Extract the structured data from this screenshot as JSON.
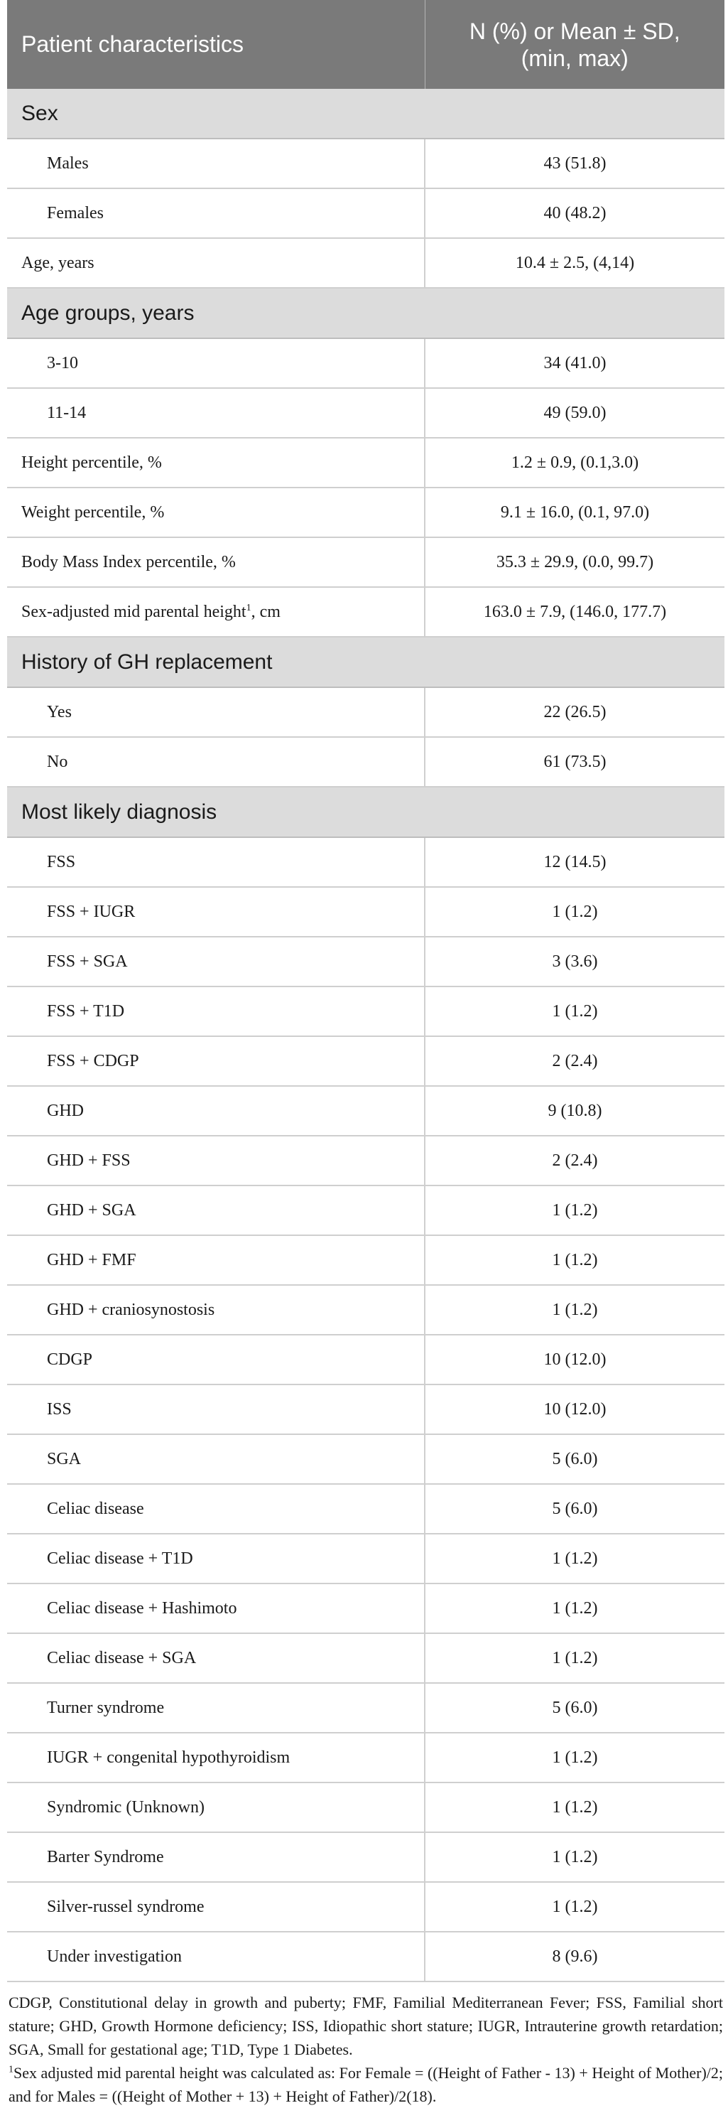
{
  "header": {
    "col1": "Patient characteristics",
    "col2_line1": "N (%) or Mean ± SD,",
    "col2_line2": "(min, max)"
  },
  "sections": {
    "sex": "Sex",
    "age_groups": "Age groups, years",
    "gh_history": "History of GH replacement",
    "diagnosis": "Most likely diagnosis"
  },
  "rows": {
    "males": [
      "Males",
      "43 (51.8)"
    ],
    "females": [
      "Females",
      "40 (48.2)"
    ],
    "age": [
      "Age, years",
      "10.4 ± 2.5, (4,14)"
    ],
    "age_3_10": [
      "3-10",
      "34 (41.0)"
    ],
    "age_11_14": [
      "11-14",
      "49 (59.0)"
    ],
    "height_pct": [
      "Height percentile, %",
      "1.2 ± 0.9, (0.1,3.0)"
    ],
    "weight_pct": [
      "Weight percentile, %",
      "9.1 ± 16.0, (0.1, 97.0)"
    ],
    "bmi_pct": [
      "Body Mass Index percentile, %",
      "35.3 ± 29.9, (0.0, 99.7)"
    ],
    "midparental_label": "Sex-adjusted mid parental height",
    "midparental_sup": "1",
    "midparental_unit": ", cm",
    "midparental_value": "163.0 ± 7.9, (146.0, 177.7)",
    "gh_yes": [
      "Yes",
      "22 (26.5)"
    ],
    "gh_no": [
      "No",
      "61 (73.5)"
    ]
  },
  "diagnoses": [
    [
      "FSS",
      "12 (14.5)"
    ],
    [
      "FSS + IUGR",
      "1 (1.2)"
    ],
    [
      "FSS + SGA",
      "3 (3.6)"
    ],
    [
      "FSS + T1D",
      "1 (1.2)"
    ],
    [
      "FSS + CDGP",
      "2 (2.4)"
    ],
    [
      "GHD",
      "9 (10.8)"
    ],
    [
      "GHD + FSS",
      "2 (2.4)"
    ],
    [
      "GHD + SGA",
      "1 (1.2)"
    ],
    [
      "GHD + FMF",
      "1 (1.2)"
    ],
    [
      "GHD + craniosynostosis",
      "1 (1.2)"
    ],
    [
      "CDGP",
      "10 (12.0)"
    ],
    [
      "ISS",
      "10 (12.0)"
    ],
    [
      "SGA",
      "5 (6.0)"
    ],
    [
      "Celiac disease",
      "5 (6.0)"
    ],
    [
      "Celiac disease + T1D",
      "1 (1.2)"
    ],
    [
      "Celiac disease + Hashimoto",
      "1 (1.2)"
    ],
    [
      "Celiac disease + SGA",
      "1 (1.2)"
    ],
    [
      "Turner syndrome",
      "5 (6.0)"
    ],
    [
      "IUGR + congenital hypothyroidism",
      "1 (1.2)"
    ],
    [
      "Syndromic (Unknown)",
      "1 (1.2)"
    ],
    [
      "Barter Syndrome",
      "1 (1.2)"
    ],
    [
      "Silver-russel syndrome",
      "1 (1.2)"
    ],
    [
      "Under investigation",
      "8 (9.6)"
    ]
  ],
  "footnote": {
    "abbreviations": "CDGP, Constitutional delay in growth and puberty; FMF, Familial Mediterranean Fever; FSS, Familial short stature; GHD, Growth Hormone deficiency; ISS, Idiopathic short stature; IUGR, Intrauterine growth retardation; SGA, Small for gestational age; T1D, Type 1 Diabetes.",
    "note_sup": "1",
    "note": "Sex adjusted mid parental height was calculated as: For Female = ((Height of Father - 13) + Height of Mother)/2; and for Males = ((Height of Mother + 13) + Height of Father)/2(18)."
  }
}
